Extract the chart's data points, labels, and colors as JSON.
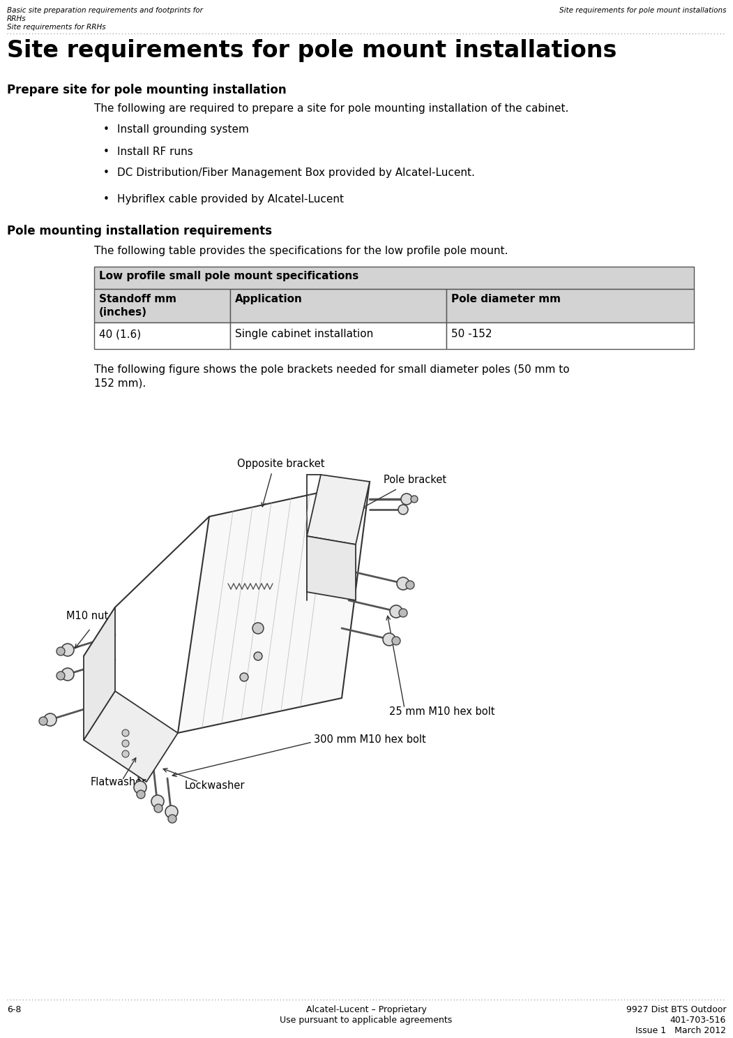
{
  "bg_color": "#ffffff",
  "header_left_line1": "Basic site preparation requirements and footprints for",
  "header_left_line2": "RRHs",
  "header_left_line3": "Site requirements for RRHs",
  "header_right": "Site requirements for pole mount installations",
  "main_title": "Site requirements for pole mount installations",
  "section1_title": "Prepare site for pole mounting installation",
  "section1_intro": "The following are required to prepare a site for pole mounting installation of the cabinet.",
  "bullets": [
    "Install grounding system",
    "Install RF runs",
    "DC Distribution/Fiber Management Box provided by Alcatel-Lucent.",
    "Hybriflex cable provided by Alcatel-Lucent"
  ],
  "section2_title": "Pole mounting installation requirements",
  "section2_intro": "The following table provides the specifications for the low profile pole mount.",
  "table_header_main": "Low profile small pole mount specifications",
  "table_col_headers": [
    "Standoff mm\n(inches)",
    "Application",
    "Pole diameter mm"
  ],
  "table_row": [
    "40 (1.6)",
    "Single cabinet installation",
    "50 -152"
  ],
  "figure_caption_line1": "The following figure shows the pole brackets needed for small diameter poles (50 mm to",
  "figure_caption_line2": "152 mm).",
  "labels": {
    "opposite_bracket": "Opposite bracket",
    "pole_bracket": "Pole bracket",
    "m10_nut": "M10 nut",
    "25mm_bolt": "25 mm M10 hex bolt",
    "300mm_bolt": "300 mm M10 hex bolt",
    "lockwasher": "Lockwasher",
    "flatwasher": "Flatwasher"
  },
  "footer_left": "6-8",
  "footer_center_line1": "Alcatel-Lucent – Proprietary",
  "footer_center_line2": "Use pursuant to applicable agreements",
  "footer_right_line1": "9927 Dist BTS Outdoor",
  "footer_right_line2": "401-703-516",
  "footer_right_line3": "Issue 1   March 2012",
  "table_header_bg": "#d3d3d3",
  "table_col_header_bg": "#d3d3d3",
  "table_border_color": "#555555",
  "text_color": "#000000",
  "dotted_line_color": "#888888"
}
